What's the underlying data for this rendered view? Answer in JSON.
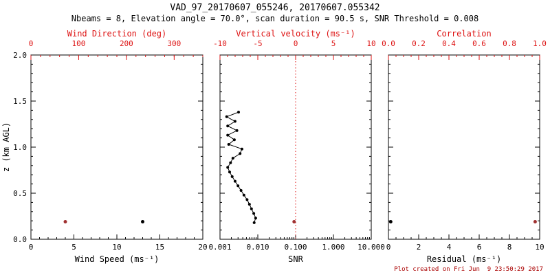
{
  "header": {
    "title": "VAD_97_20170607_055246, 20170607.055342",
    "subtitle": "Nbeams = 8, Elevation angle = 70.0°, scan duration = 90.5 s, SNR Threshold = 0.008"
  },
  "footer": {
    "created": "Plot created on Fri Jun  9 23:50:29 2017"
  },
  "colors": {
    "frame": "#000000",
    "red_axis": "#dd1111",
    "red_marker": "#a03030",
    "black_marker": "#000000"
  },
  "y_axis": {
    "label": "z (km AGL)",
    "min": 0,
    "max": 2,
    "ticks": [
      0.0,
      0.5,
      1.0,
      1.5,
      2.0
    ],
    "tick_labels": [
      "0.0",
      "0.5",
      "1.0",
      "1.5",
      "2.0"
    ],
    "minor_step": 0.1
  },
  "chart_data": [
    {
      "id": "wind",
      "type": "scatter",
      "bottom_axis": {
        "label": "Wind Speed (ms⁻¹)",
        "min": 0,
        "max": 20,
        "ticks": [
          0,
          5,
          10,
          15,
          20
        ],
        "tick_labels": [
          "0",
          "5",
          "10",
          "15",
          "20"
        ],
        "minor_step": 1
      },
      "top_axis": {
        "label": "Wind Direction (deg)",
        "min": 0,
        "max": 360,
        "ticks": [
          0,
          100,
          200,
          300
        ],
        "tick_labels": [
          "0",
          "100",
          "200",
          "300"
        ],
        "minor_step": 20
      },
      "series": [
        {
          "name": "wind-speed",
          "axis": "bottom",
          "color": "black",
          "line": false,
          "points": [
            [
              0.19,
              13.0
            ]
          ]
        },
        {
          "name": "wind-direction",
          "axis": "top",
          "color": "red",
          "line": false,
          "points": [
            [
              0.19,
              72
            ]
          ]
        }
      ]
    },
    {
      "id": "snr",
      "type": "line",
      "bottom_axis": {
        "label": "SNR",
        "scale": "log",
        "min": 0.001,
        "max": 10,
        "ticks": [
          0.001,
          0.01,
          0.1,
          1.0,
          10.0
        ],
        "tick_labels": [
          "0.001",
          "0.010",
          "0.100",
          "1.000",
          "10.000"
        ]
      },
      "top_axis": {
        "label": "Vertical velocity (ms⁻¹)",
        "min": -10,
        "max": 10,
        "ticks": [
          -10,
          -5,
          0,
          5,
          10
        ],
        "tick_labels": [
          "-10",
          "-5",
          "0",
          "5",
          "10"
        ],
        "minor_step": 1
      },
      "reference_line": {
        "axis": "top",
        "value": 0,
        "style": "dotted",
        "color": "red"
      },
      "series": [
        {
          "name": "snr-profile",
          "axis": "bottom",
          "color": "black",
          "line": true,
          "points": [
            [
              1.38,
              0.0031
            ],
            [
              1.33,
              0.0015
            ],
            [
              1.28,
              0.0025
            ],
            [
              1.23,
              0.0016
            ],
            [
              1.18,
              0.0028
            ],
            [
              1.13,
              0.0016
            ],
            [
              1.08,
              0.0024
            ],
            [
              1.03,
              0.0017
            ],
            [
              0.98,
              0.0038
            ],
            [
              0.93,
              0.0034
            ],
            [
              0.88,
              0.0022
            ],
            [
              0.83,
              0.0019
            ],
            [
              0.78,
              0.0016
            ],
            [
              0.73,
              0.0018
            ],
            [
              0.68,
              0.0021
            ],
            [
              0.63,
              0.0025
            ],
            [
              0.58,
              0.003
            ],
            [
              0.53,
              0.0036
            ],
            [
              0.48,
              0.0043
            ],
            [
              0.43,
              0.0052
            ],
            [
              0.38,
              0.006
            ],
            [
              0.33,
              0.0068
            ],
            [
              0.28,
              0.0078
            ],
            [
              0.23,
              0.0088
            ],
            [
              0.18,
              0.008
            ]
          ]
        },
        {
          "name": "vertical-velocity",
          "axis": "top",
          "color": "red",
          "line": false,
          "points": [
            [
              0.19,
              -0.2
            ]
          ]
        }
      ]
    },
    {
      "id": "residual",
      "type": "scatter",
      "bottom_axis": {
        "label": "Residual (ms⁻¹)",
        "min": 0,
        "max": 10,
        "ticks": [
          0,
          2,
          4,
          6,
          8,
          10
        ],
        "tick_labels": [
          "0",
          "2",
          "4",
          "6",
          "8",
          "10"
        ],
        "minor_step": 0.5
      },
      "top_axis": {
        "label": "Correlation",
        "min": 0,
        "max": 1,
        "ticks": [
          0.0,
          0.2,
          0.4,
          0.6,
          0.8,
          1.0
        ],
        "tick_labels": [
          "0.0",
          "0.2",
          "0.4",
          "0.6",
          "0.8",
          "1.0"
        ],
        "minor_step": 0.05
      },
      "series": [
        {
          "name": "residual",
          "axis": "bottom",
          "color": "black",
          "line": false,
          "points": [
            [
              0.19,
              0.15
            ]
          ]
        },
        {
          "name": "correlation",
          "axis": "top",
          "color": "red",
          "line": false,
          "points": [
            [
              0.19,
              0.97
            ]
          ]
        }
      ]
    }
  ]
}
